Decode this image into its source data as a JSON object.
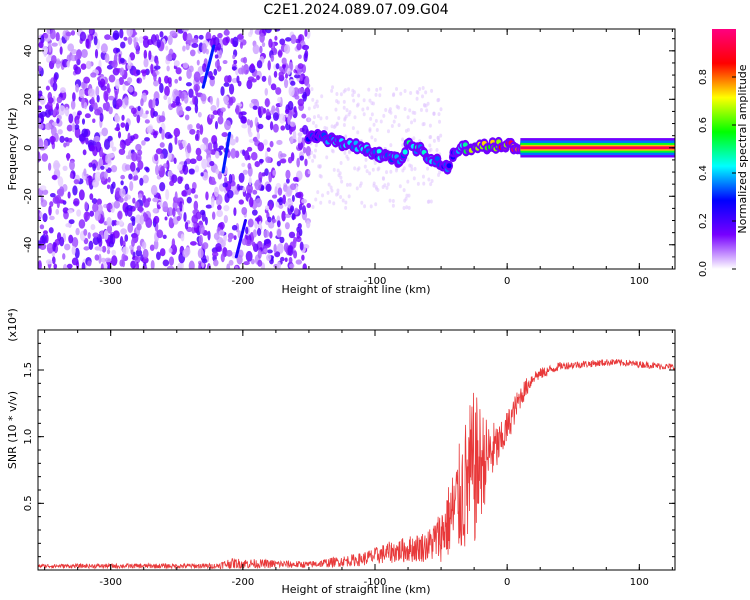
{
  "title": "C2E1.2024.089.07.09.G04",
  "chart_data": [
    {
      "type": "heatmap",
      "xlabel": "Height of straight line (km)",
      "ylabel": "Frequency (Hz)",
      "xlim": [
        -355,
        127
      ],
      "ylim": [
        -50,
        49
      ],
      "x_ticks": [
        -300,
        -200,
        -100,
        0,
        100
      ],
      "x_tick_labels": [
        "-300",
        "-200",
        "-100",
        "0",
        "100"
      ],
      "y_ticks": [
        -40,
        -20,
        0,
        20,
        40
      ],
      "y_tick_labels": [
        "-40",
        "-20",
        "0",
        "20",
        "40"
      ],
      "colorbar": {
        "label": "Normalized spectral amplitude",
        "range": [
          0,
          1
        ],
        "ticks": [
          0.0,
          0.2,
          0.4,
          0.6,
          0.8
        ],
        "tick_labels": [
          "0.0",
          "0.2",
          "0.4",
          "0.6",
          "0.8"
        ],
        "colors": [
          "#ffffff",
          "#7700ff",
          "#0000ff",
          "#00ffff",
          "#00ff00",
          "#ffff00",
          "#ff0000",
          "#ff0080"
        ]
      },
      "noise_region": {
        "x_range": [
          -355,
          -150
        ],
        "y_range": [
          -50,
          49
        ],
        "amplitude_range": [
          0.02,
          0.2
        ]
      },
      "ridge": [
        {
          "x": -150,
          "y": 5,
          "amp": 0.25
        },
        {
          "x": -140,
          "y": 4,
          "amp": 0.35
        },
        {
          "x": -130,
          "y": 3,
          "amp": 0.38
        },
        {
          "x": -120,
          "y": 1,
          "amp": 0.36
        },
        {
          "x": -110,
          "y": 0,
          "amp": 0.4
        },
        {
          "x": -100,
          "y": -2,
          "amp": 0.38
        },
        {
          "x": -90,
          "y": -4,
          "amp": 0.36
        },
        {
          "x": -80,
          "y": -6,
          "amp": 0.38
        },
        {
          "x": -75,
          "y": 1,
          "amp": 0.42
        },
        {
          "x": -65,
          "y": -1,
          "amp": 0.4
        },
        {
          "x": -55,
          "y": -5,
          "amp": 0.38
        },
        {
          "x": -45,
          "y": -8,
          "amp": 0.35
        },
        {
          "x": -40,
          "y": -3,
          "amp": 0.3
        },
        {
          "x": -35,
          "y": 0,
          "amp": 0.45
        },
        {
          "x": -25,
          "y": 0,
          "amp": 0.6
        },
        {
          "x": -10,
          "y": 1,
          "amp": 0.7
        },
        {
          "x": 0,
          "y": 1,
          "amp": 0.8
        },
        {
          "x": 10,
          "y": 0,
          "amp": 0.92
        },
        {
          "x": 127,
          "y": 0,
          "amp": 0.95
        }
      ],
      "streaks": [
        {
          "x": [
            -230,
            -222
          ],
          "y": [
            25,
            42
          ],
          "amp": 0.3
        },
        {
          "x": [
            -215,
            -210
          ],
          "y": [
            -10,
            6
          ],
          "amp": 0.3
        },
        {
          "x": [
            -205,
            -198
          ],
          "y": [
            -45,
            -30
          ],
          "amp": 0.25
        }
      ]
    },
    {
      "type": "line",
      "xlabel": "Height of straight line (km)",
      "ylabel": "SNR (10 * v/v)",
      "y_multiplier": "(x10⁴)",
      "xlim": [
        -355,
        127
      ],
      "ylim": [
        0,
        18000
      ],
      "x_ticks": [
        -300,
        -200,
        -100,
        0,
        100
      ],
      "x_tick_labels": [
        "-300",
        "-200",
        "-100",
        "0",
        "100"
      ],
      "y_ticks": [
        5000,
        10000,
        15000
      ],
      "y_tick_labels": [
        "0.5",
        "1.0",
        "1.5"
      ],
      "color": "#e8393a",
      "envelope": [
        {
          "x": -355,
          "mean": 300,
          "noise": 150
        },
        {
          "x": -220,
          "mean": 300,
          "noise": 200
        },
        {
          "x": -210,
          "mean": 500,
          "noise": 400
        },
        {
          "x": -150,
          "mean": 400,
          "noise": 250
        },
        {
          "x": -110,
          "mean": 800,
          "noise": 500
        },
        {
          "x": -90,
          "mean": 1300,
          "noise": 800
        },
        {
          "x": -60,
          "mean": 1800,
          "noise": 1200
        },
        {
          "x": -50,
          "mean": 2600,
          "noise": 2000
        },
        {
          "x": -40,
          "mean": 4500,
          "noise": 3500
        },
        {
          "x": -30,
          "mean": 6500,
          "noise": 5500
        },
        {
          "x": -25,
          "mean": 7500,
          "noise": 6000
        },
        {
          "x": -15,
          "mean": 8500,
          "noise": 2800
        },
        {
          "x": -5,
          "mean": 9500,
          "noise": 1500
        },
        {
          "x": 10,
          "mean": 13000,
          "noise": 900
        },
        {
          "x": 20,
          "mean": 14500,
          "noise": 500
        },
        {
          "x": 40,
          "mean": 15300,
          "noise": 300
        },
        {
          "x": 80,
          "mean": 15600,
          "noise": 250
        },
        {
          "x": 127,
          "mean": 15200,
          "noise": 250
        }
      ]
    }
  ]
}
